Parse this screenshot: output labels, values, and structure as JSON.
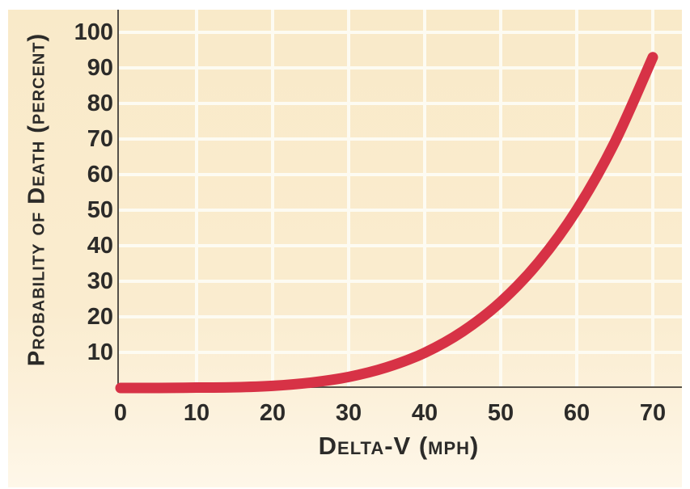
{
  "figure": {
    "background_color": "#ffffff",
    "panel_color_top": "#f9eac9",
    "panel_color_bottom": "#fef7e9"
  },
  "chart_data": {
    "type": "line",
    "title": "",
    "xlabel": "Delta-V (mph)",
    "ylabel": "Probability of Death (percent)",
    "xlim": [
      0,
      70
    ],
    "ylim": [
      0,
      100
    ],
    "x_ticks": [
      0,
      10,
      20,
      30,
      40,
      50,
      60,
      70
    ],
    "y_ticks": [
      10,
      20,
      30,
      40,
      50,
      60,
      70,
      80,
      90,
      100
    ],
    "grid": "on",
    "legend": "none",
    "gridline_color": "#fdfbf2",
    "axis_color": "#56514a",
    "line_color": "#d73246",
    "line_width": 13,
    "series": [
      {
        "name": "probability-of-death",
        "x": [
          0,
          5,
          10,
          15,
          20,
          25,
          30,
          35,
          40,
          45,
          50,
          55,
          60,
          65,
          70
        ],
        "y": [
          0,
          0,
          0.1,
          0.2,
          0.6,
          1.5,
          3.1,
          5.8,
          9.9,
          15.9,
          24.2,
          35.4,
          50.1,
          69.1,
          93
        ]
      }
    ]
  }
}
